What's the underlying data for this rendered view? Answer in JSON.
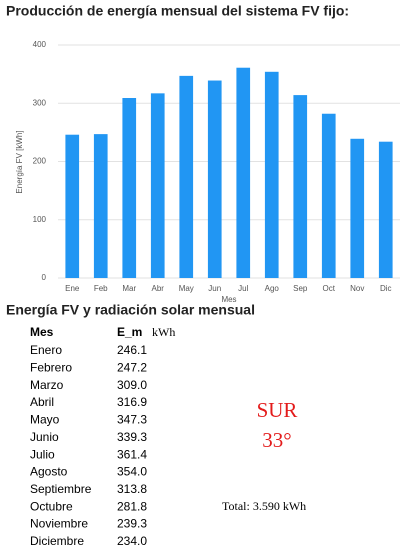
{
  "chart_data": {
    "type": "bar",
    "title": "Producción de energía mensual del sistema FV fijo:",
    "categories": [
      "Ene",
      "Feb",
      "Mar",
      "Abr",
      "May",
      "Jun",
      "Jul",
      "Ago",
      "Sep",
      "Oct",
      "Nov",
      "Dic"
    ],
    "values": [
      246,
      247,
      309,
      317,
      347,
      339,
      361,
      354,
      314,
      282,
      239,
      234
    ],
    "color": "#2196f3",
    "ylim": [
      0,
      400
    ],
    "yticks": [
      0,
      100,
      200,
      300,
      400
    ],
    "grid": true,
    "y_label": "Energía FV [kWh]",
    "x_label": "Mes"
  },
  "table": {
    "title": "Energía FV y radiación solar mensual",
    "header": [
      "Mes",
      "E_m",
      "kWh"
    ],
    "rows": [
      [
        "Enero",
        "246.1"
      ],
      [
        "Febrero",
        "247.2"
      ],
      [
        "Marzo",
        "309.0"
      ],
      [
        "Abril",
        "316.9"
      ],
      [
        "Mayo",
        "347.3"
      ],
      [
        "Junio",
        "339.3"
      ],
      [
        "Julio",
        "361.4"
      ],
      [
        "Agosto",
        "354.0"
      ],
      [
        "Septiembre",
        "313.8"
      ],
      [
        "Octubre",
        "281.8"
      ],
      [
        "Noviembre",
        "239.3"
      ],
      [
        "Diciembre",
        "234.0"
      ]
    ],
    "orientation": "SUR",
    "angle": "33°",
    "total": "Total: 3.590 kWh"
  }
}
